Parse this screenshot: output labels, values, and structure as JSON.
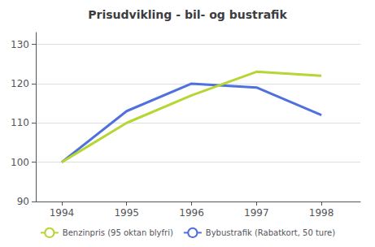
{
  "chart_data": {
    "type": "line",
    "title": "Prisudvikling - bil- og bustrafik",
    "x": [
      1994,
      1995,
      1996,
      1997,
      1998
    ],
    "series": [
      {
        "name": "Bybustrafik (Rabatkort, 50 ture)",
        "values": [
          100,
          113,
          120,
          119,
          112
        ]
      },
      {
        "name": "Benzinpris (95 oktan blyfri)",
        "values": [
          100,
          110,
          117,
          123,
          122
        ]
      }
    ],
    "xlim": [
      1993.6,
      1998.6
    ],
    "xticks": [
      1994,
      1995,
      1996,
      1997,
      1998
    ],
    "ylim": [
      90,
      133
    ],
    "yticks": [
      90,
      100,
      110,
      120,
      130
    ],
    "grid": true,
    "legend": "bottom"
  }
}
